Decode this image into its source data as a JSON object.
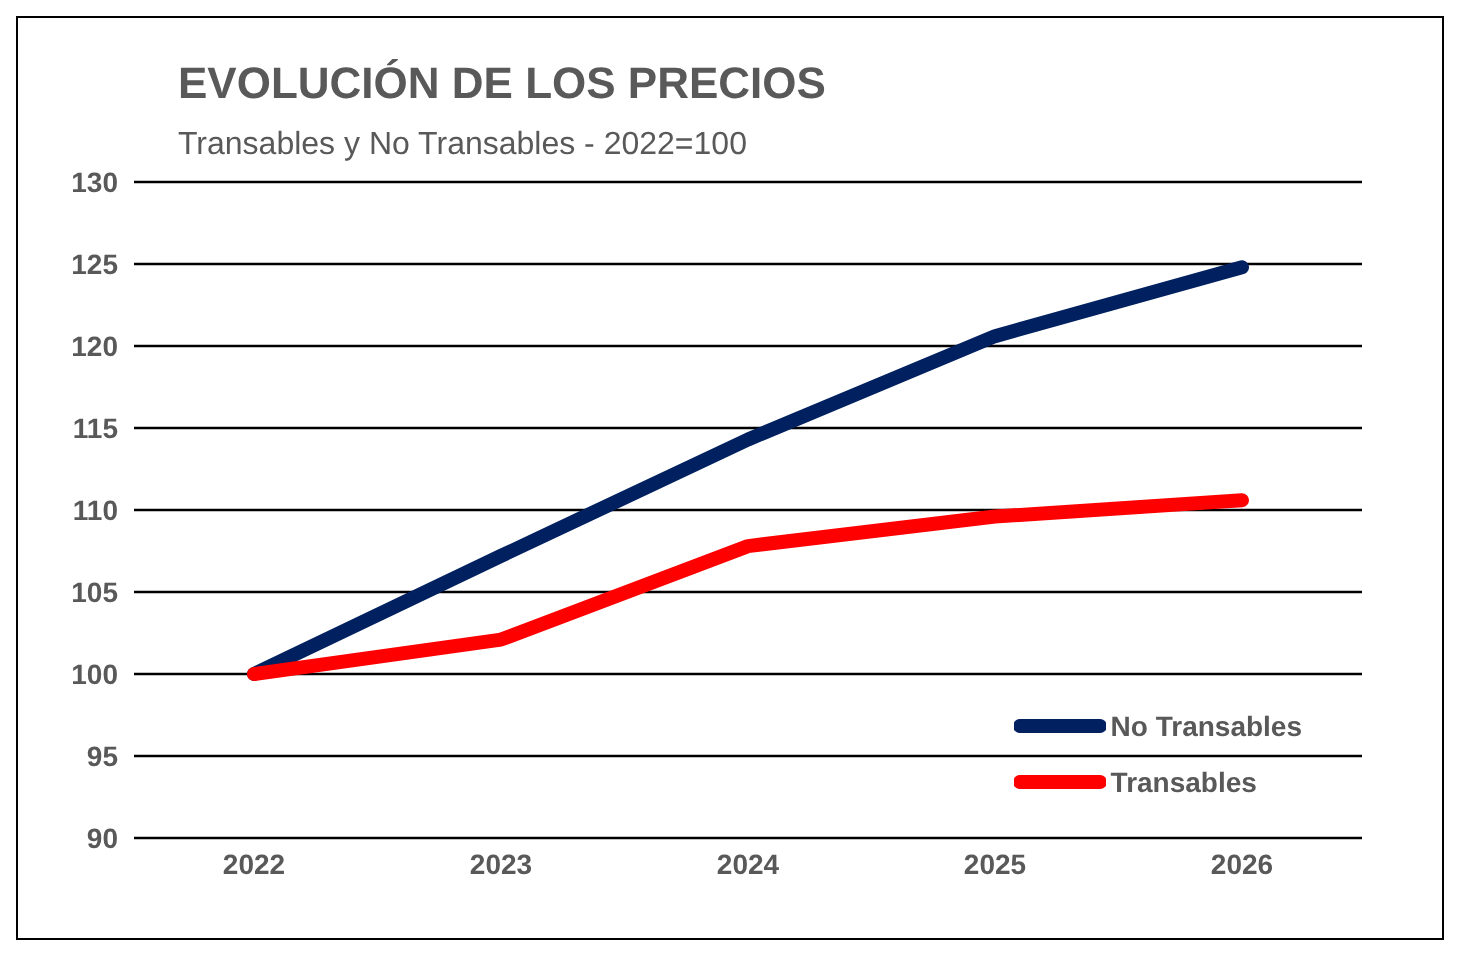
{
  "chart_data": {
    "type": "line",
    "title": "EVOLUCIÓN DE LOS PRECIOS",
    "subtitle": "Transables y No Transables - 2022=100",
    "categories": [
      "2022",
      "2023",
      "2024",
      "2025",
      "2026"
    ],
    "series": [
      {
        "name": "No Transables",
        "color": "#002060",
        "values": [
          100,
          107.2,
          114.3,
          120.6,
          124.8
        ]
      },
      {
        "name": "Transables",
        "color": "#ff0000",
        "values": [
          100,
          102.1,
          107.8,
          109.6,
          110.6
        ]
      }
    ],
    "ylim": [
      90,
      130
    ],
    "yticks": [
      90,
      95,
      100,
      105,
      110,
      115,
      120,
      125,
      130
    ],
    "grid": "y",
    "legend": "bottom right",
    "marker": "none",
    "line_style": "solid"
  }
}
